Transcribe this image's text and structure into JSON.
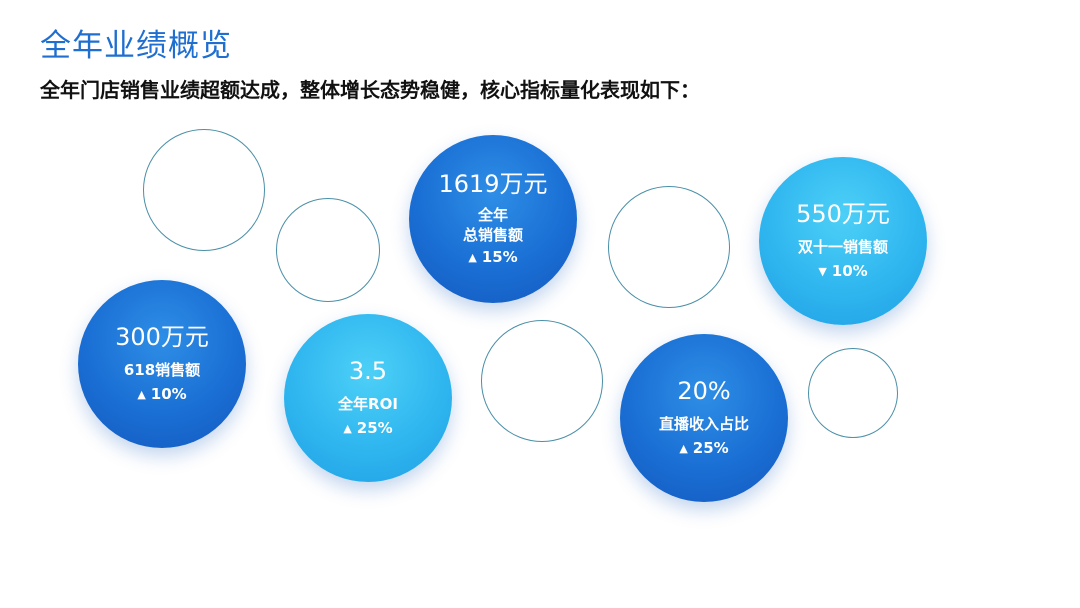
{
  "header": {
    "title": "全年业绩概览",
    "subtitle": "全年门店销售业绩超额达成，整体增长态势稳健，核心指标量化表现如下："
  },
  "metrics": [
    {
      "value": "1619万元",
      "label_line1": "全年",
      "label_line2": "总销售额",
      "direction": "up",
      "change": "15%",
      "arrow": "▲"
    },
    {
      "value": "550万元",
      "label_line1": "双十一销售额",
      "label_line2": "",
      "direction": "down",
      "change": "10%",
      "arrow": "▼"
    },
    {
      "value": "300万元",
      "label_line1": "618销售额",
      "label_line2": "",
      "direction": "up",
      "change": "10%",
      "arrow": "▲"
    },
    {
      "value": "3.5",
      "label_line1": "全年ROI",
      "label_line2": "",
      "direction": "up",
      "change": "25%",
      "arrow": "▲"
    },
    {
      "value": "20%",
      "label_line1": "直播收入占比",
      "label_line2": "",
      "direction": "up",
      "change": "25%",
      "arrow": "▲"
    }
  ],
  "colors": {
    "title": "#1f6fd0",
    "bubble_dark": "#1a6fd4",
    "bubble_light": "#2fb6ef",
    "ring": "#4a8fa8"
  }
}
